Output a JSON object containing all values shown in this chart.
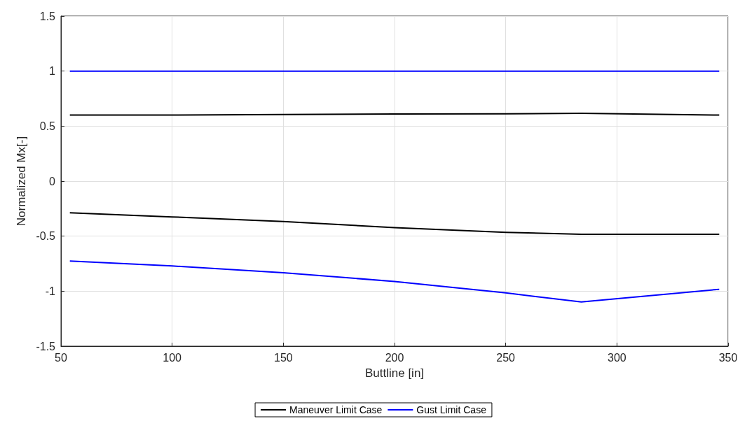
{
  "chart_data": {
    "type": "line",
    "xlabel": "Buttline [in]",
    "ylabel": "Normalized Mx[-]",
    "xlim": [
      50,
      350
    ],
    "xticks": [
      50,
      100,
      150,
      200,
      250,
      300,
      350
    ],
    "ylim": [
      -1.5,
      1.5
    ],
    "yticks": [
      -1.5,
      -1,
      -0.5,
      0,
      0.5,
      1,
      1.5
    ],
    "grid": true,
    "legend": "bottom",
    "line_style": "solid",
    "marker": "none",
    "series": [
      {
        "name": "Maneuver Limit Case",
        "color": "#000000",
        "x": [
          54,
          100,
          150,
          200,
          250,
          284,
          346
        ],
        "values": [
          0.6,
          0.6,
          0.605,
          0.61,
          0.612,
          0.616,
          0.6
        ]
      },
      {
        "color": "#000000",
        "x": [
          54,
          100,
          150,
          200,
          250,
          284,
          346
        ],
        "values": [
          -0.288,
          -0.325,
          -0.367,
          -0.422,
          -0.465,
          -0.483,
          -0.483
        ]
      },
      {
        "name": "Gust Limit Case",
        "color": "#0000ff",
        "x": [
          54,
          346
        ],
        "values": [
          1,
          1
        ]
      },
      {
        "color": "#0000ff",
        "x": [
          54,
          100,
          150,
          200,
          250,
          284,
          346
        ],
        "values": [
          -0.726,
          -0.771,
          -0.832,
          -0.912,
          -1.016,
          -1.098,
          -0.983
        ]
      }
    ]
  }
}
